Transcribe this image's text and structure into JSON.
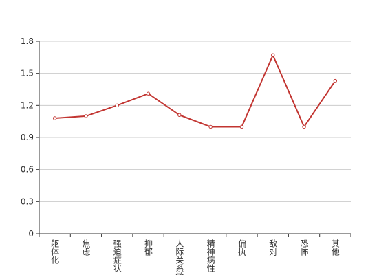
{
  "chart_data": {
    "type": "line",
    "categories": [
      "躯体化",
      "焦虑",
      "强迫症状",
      "抑郁",
      "人际关系敏感",
      "精神病性",
      "偏执",
      "敌对",
      "恐怖",
      "其他"
    ],
    "series": [
      {
        "color": "#c23531",
        "values": [
          1.08,
          1.1,
          1.2,
          1.31,
          1.11,
          1.0,
          1.0,
          1.67,
          1.0,
          1.43
        ]
      }
    ],
    "ylim": [
      0,
      1.8
    ],
    "yticks": [
      0,
      0.3,
      0.6,
      0.9,
      1.2,
      1.5,
      1.8
    ],
    "grid": true
  }
}
